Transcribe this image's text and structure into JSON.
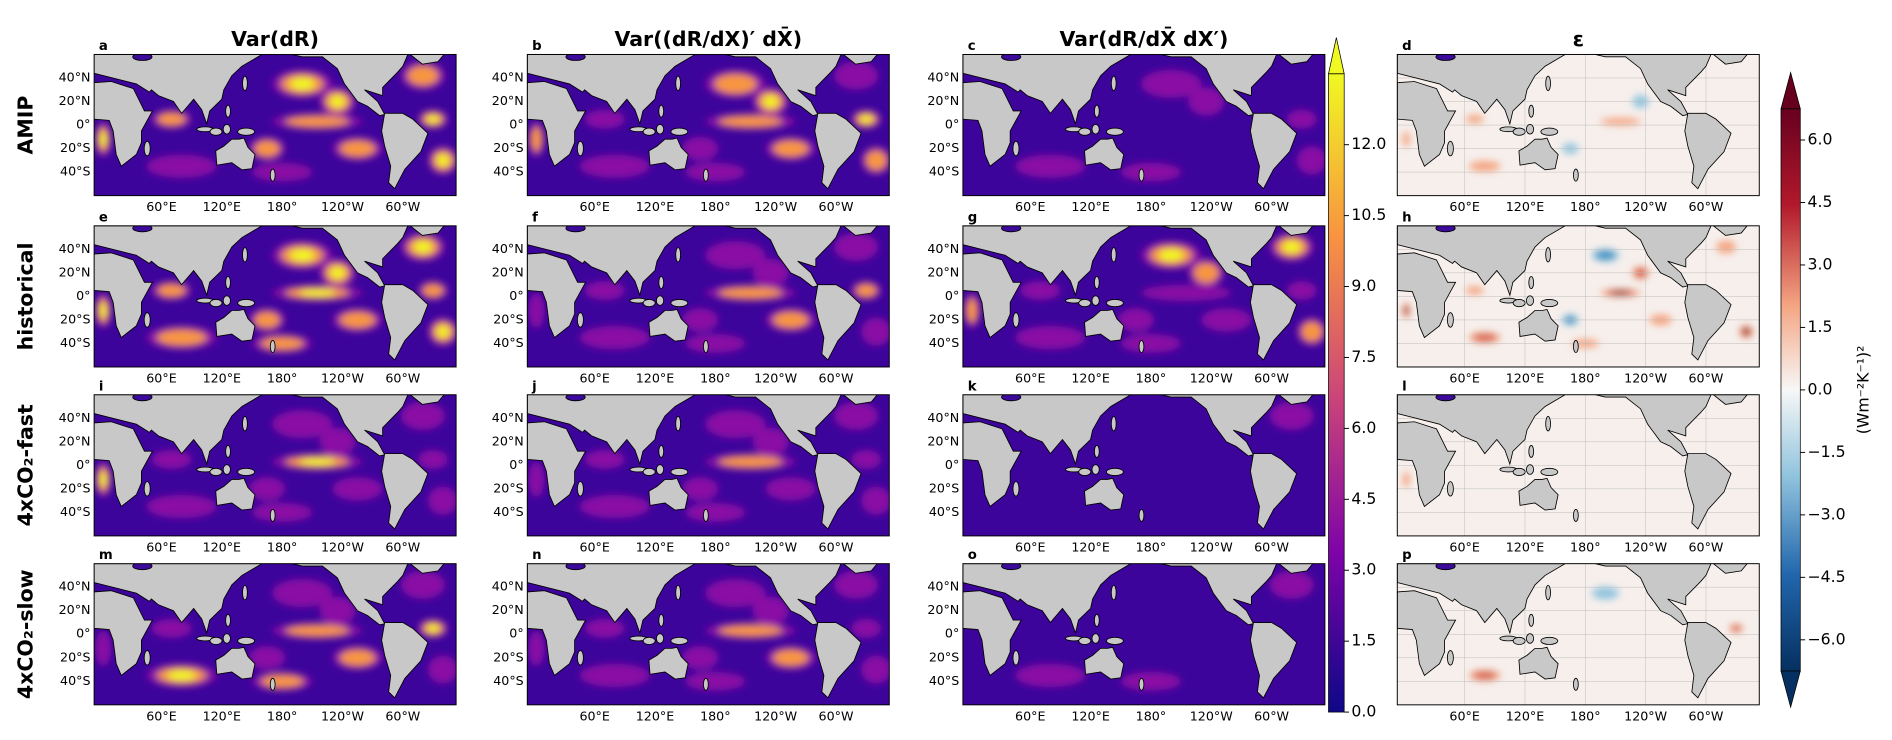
{
  "column_titles": [
    "Var(dR)",
    "Var((dR/dX)′ dX̄)",
    "Var(dR/dX̄ dX′)",
    "ε"
  ],
  "row_labels": [
    "AMIP",
    "historical",
    "4xCO₂-fast",
    "4xCO₂-slow"
  ],
  "panel_letters": [
    "a",
    "b",
    "c",
    "d",
    "e",
    "f",
    "g",
    "h",
    "i",
    "j",
    "k",
    "l",
    "m",
    "n",
    "o",
    "p"
  ],
  "lat_range": [
    -60,
    60
  ],
  "lon_range": [
    -7,
    353
  ],
  "lat_ticks": [
    {
      "value": 40,
      "label": "40°N"
    },
    {
      "value": 20,
      "label": "20°N"
    },
    {
      "value": 0,
      "label": "0°"
    },
    {
      "value": -20,
      "label": "20°S"
    },
    {
      "value": -40,
      "label": "40°S"
    }
  ],
  "lon_ticks": [
    {
      "value": 60,
      "label": "60°E"
    },
    {
      "value": 120,
      "label": "120°E"
    },
    {
      "value": 180,
      "label": "180°"
    },
    {
      "value": 240,
      "label": "120°W"
    },
    {
      "value": 300,
      "label": "60°W"
    }
  ],
  "colorbars": [
    {
      "lim": [
        0,
        13.5
      ],
      "ticks": [
        {
          "value": 0,
          "label": "0.0"
        },
        {
          "value": 1.5,
          "label": "1.5"
        },
        {
          "value": 3,
          "label": "3.0"
        },
        {
          "value": 4.5,
          "label": "4.5"
        },
        {
          "value": 6,
          "label": "6.0"
        },
        {
          "value": 7.5,
          "label": "7.5"
        },
        {
          "value": 9,
          "label": "9.0"
        },
        {
          "value": 10.5,
          "label": "10.5"
        },
        {
          "value": 12,
          "label": "12.0"
        }
      ]
    },
    {
      "lim": [
        -6.75,
        6.75
      ],
      "label": "(Wm⁻²K⁻¹)²",
      "ticks": [
        {
          "value": -6,
          "label": "−6.0"
        },
        {
          "value": -4.5,
          "label": "−4.5"
        },
        {
          "value": -3,
          "label": "−3.0"
        },
        {
          "value": -1.5,
          "label": "−1.5"
        },
        {
          "value": 0,
          "label": "0.0"
        },
        {
          "value": 1.5,
          "label": "1.5"
        },
        {
          "value": 3,
          "label": "3.0"
        },
        {
          "value": 4.5,
          "label": "4.5"
        },
        {
          "value": 6,
          "label": "6.0"
        }
      ]
    }
  ]
}
